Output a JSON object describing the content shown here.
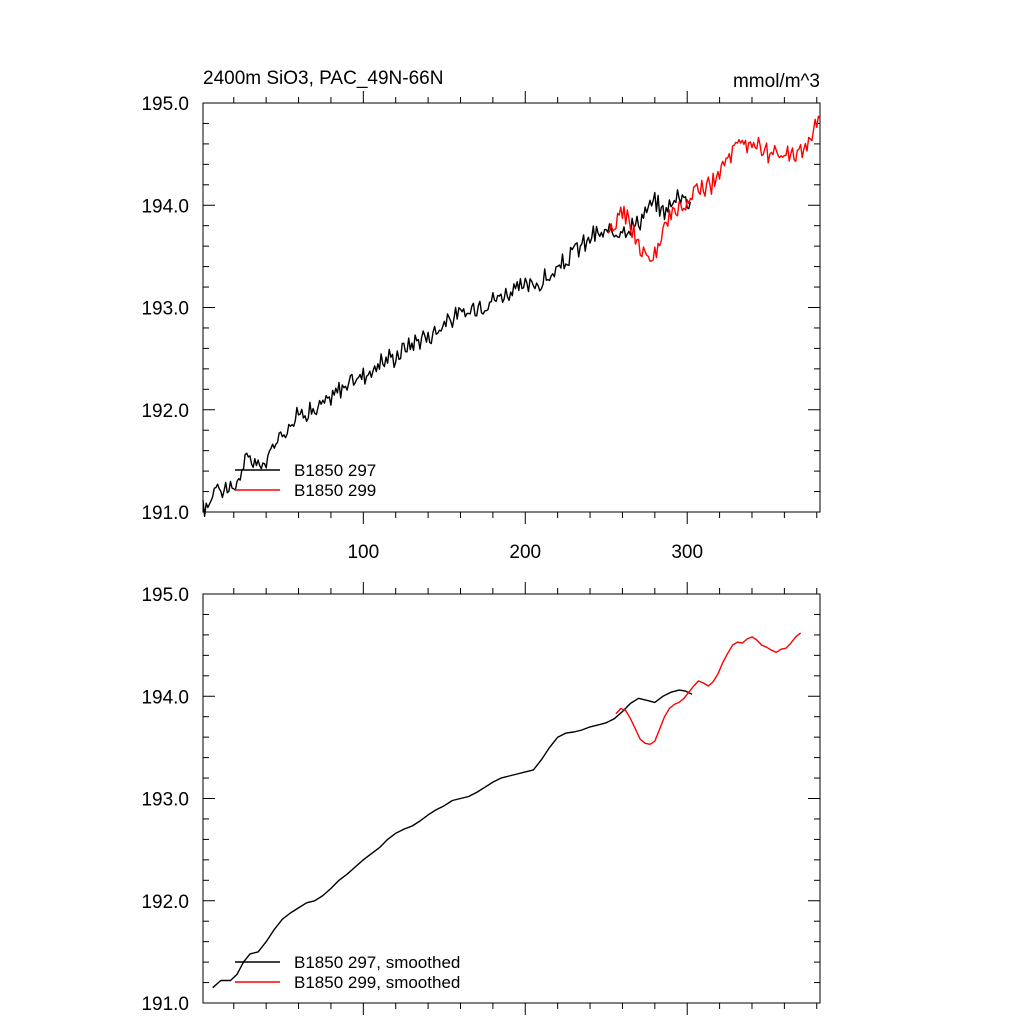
{
  "chart_data": [
    {
      "type": "line",
      "title": "2400m SiO3, PAC_49N-66N",
      "units": "mmol/m^3",
      "xlim": [
        1,
        382
      ],
      "ylim": [
        191.0,
        195.0
      ],
      "x_ticks": [
        100,
        200,
        300
      ],
      "x_tick_labels": [
        "100",
        "200",
        "300"
      ],
      "y_ticks": [
        191.0,
        192.0,
        193.0,
        194.0,
        195.0
      ],
      "y_tick_labels": [
        "191.0",
        "192.0",
        "193.0",
        "194.0",
        "195.0"
      ],
      "legend_position": "bottom-left",
      "series": [
        {
          "name": "B1850 297",
          "color": "#000000",
          "x_start": 1,
          "points": [
            [
              1,
              191.02
            ],
            [
              5,
              191.08
            ],
            [
              8,
              191.25
            ],
            [
              10,
              191.32
            ],
            [
              13,
              191.18
            ],
            [
              16,
              191.28
            ],
            [
              20,
              191.18
            ],
            [
              23,
              191.35
            ],
            [
              27,
              191.48
            ],
            [
              31,
              191.52
            ],
            [
              35,
              191.45
            ],
            [
              40,
              191.48
            ],
            [
              44,
              191.62
            ],
            [
              48,
              191.75
            ],
            [
              52,
              191.82
            ],
            [
              56,
              191.88
            ],
            [
              60,
              191.95
            ],
            [
              65,
              192.0
            ],
            [
              70,
              191.98
            ],
            [
              75,
              192.05
            ],
            [
              80,
              192.1
            ],
            [
              85,
              192.2
            ],
            [
              90,
              192.25
            ],
            [
              95,
              192.3
            ],
            [
              100,
              192.35
            ],
            [
              105,
              192.38
            ],
            [
              110,
              192.45
            ],
            [
              115,
              192.5
            ],
            [
              120,
              192.52
            ],
            [
              125,
              192.6
            ],
            [
              130,
              192.65
            ],
            [
              135,
              192.7
            ],
            [
              140,
              192.72
            ],
            [
              145,
              192.78
            ],
            [
              150,
              192.85
            ],
            [
              155,
              192.9
            ],
            [
              160,
              192.92
            ],
            [
              165,
              192.95
            ],
            [
              170,
              193.02
            ],
            [
              175,
              193.05
            ],
            [
              180,
              193.08
            ],
            [
              185,
              193.12
            ],
            [
              190,
              193.15
            ],
            [
              195,
              193.18
            ],
            [
              200,
              193.2
            ],
            [
              205,
              193.22
            ],
            [
              210,
              193.25
            ],
            [
              215,
              193.3
            ],
            [
              220,
              193.35
            ],
            [
              225,
              193.45
            ],
            [
              230,
              193.55
            ],
            [
              235,
              193.6
            ],
            [
              240,
              193.68
            ],
            [
              245,
              193.72
            ],
            [
              250,
              193.7
            ],
            [
              255,
              193.75
            ],
            [
              260,
              193.8
            ],
            [
              265,
              193.78
            ],
            [
              270,
              193.85
            ],
            [
              275,
              193.95
            ],
            [
              280,
              194.02
            ],
            [
              285,
              193.95
            ],
            [
              290,
              194.0
            ],
            [
              295,
              194.12
            ],
            [
              300,
              194.05
            ],
            [
              302,
              194.08
            ]
          ]
        },
        {
          "name": "B1850 299",
          "color": "#ff0000",
          "x_start": 251,
          "points": [
            [
              251,
              193.65
            ],
            [
              255,
              193.8
            ],
            [
              259,
              193.95
            ],
            [
              263,
              193.9
            ],
            [
              267,
              193.72
            ],
            [
              271,
              193.58
            ],
            [
              275,
              193.5
            ],
            [
              279,
              193.45
            ],
            [
              283,
              193.6
            ],
            [
              287,
              193.8
            ],
            [
              291,
              193.92
            ],
            [
              295,
              193.95
            ],
            [
              299,
              194.0
            ],
            [
              303,
              194.08
            ],
            [
              307,
              194.2
            ],
            [
              311,
              194.15
            ],
            [
              315,
              194.18
            ],
            [
              319,
              194.3
            ],
            [
              323,
              194.4
            ],
            [
              327,
              194.5
            ],
            [
              331,
              194.55
            ],
            [
              335,
              194.58
            ],
            [
              339,
              194.6
            ],
            [
              343,
              194.62
            ],
            [
              347,
              194.55
            ],
            [
              351,
              194.5
            ],
            [
              355,
              194.48
            ],
            [
              359,
              194.45
            ],
            [
              363,
              194.5
            ],
            [
              367,
              194.48
            ],
            [
              371,
              194.55
            ],
            [
              375,
              194.6
            ],
            [
              379,
              194.75
            ],
            [
              382,
              194.9
            ]
          ]
        }
      ]
    },
    {
      "type": "line",
      "xlim": [
        1,
        382
      ],
      "ylim": [
        191.0,
        195.0
      ],
      "x_ticks": [
        100,
        200,
        300
      ],
      "x_tick_labels": [],
      "y_ticks": [
        191.0,
        192.0,
        193.0,
        194.0,
        195.0
      ],
      "y_tick_labels": [
        "191.0",
        "192.0",
        "193.0",
        "194.0",
        "195.0"
      ],
      "legend_position": "bottom-left",
      "series": [
        {
          "name": "B1850 297, smoothed",
          "color": "#000000",
          "points": [
            [
              7,
              191.15
            ],
            [
              12,
              191.22
            ],
            [
              18,
              191.22
            ],
            [
              22,
              191.28
            ],
            [
              26,
              191.4
            ],
            [
              30,
              191.48
            ],
            [
              35,
              191.5
            ],
            [
              40,
              191.6
            ],
            [
              45,
              191.72
            ],
            [
              50,
              191.82
            ],
            [
              55,
              191.88
            ],
            [
              60,
              191.93
            ],
            [
              65,
              191.98
            ],
            [
              70,
              192.0
            ],
            [
              75,
              192.05
            ],
            [
              80,
              192.12
            ],
            [
              85,
              192.2
            ],
            [
              90,
              192.26
            ],
            [
              95,
              192.33
            ],
            [
              100,
              192.4
            ],
            [
              105,
              192.46
            ],
            [
              110,
              192.52
            ],
            [
              115,
              192.6
            ],
            [
              120,
              192.66
            ],
            [
              125,
              192.7
            ],
            [
              130,
              192.73
            ],
            [
              135,
              192.78
            ],
            [
              140,
              192.84
            ],
            [
              145,
              192.89
            ],
            [
              150,
              192.93
            ],
            [
              155,
              192.98
            ],
            [
              160,
              193.0
            ],
            [
              165,
              193.02
            ],
            [
              170,
              193.06
            ],
            [
              175,
              193.11
            ],
            [
              180,
              193.16
            ],
            [
              185,
              193.2
            ],
            [
              190,
              193.22
            ],
            [
              195,
              193.24
            ],
            [
              200,
              193.26
            ],
            [
              205,
              193.28
            ],
            [
              210,
              193.38
            ],
            [
              215,
              193.5
            ],
            [
              220,
              193.6
            ],
            [
              225,
              193.64
            ],
            [
              230,
              193.65
            ],
            [
              235,
              193.67
            ],
            [
              240,
              193.7
            ],
            [
              245,
              193.72
            ],
            [
              250,
              193.74
            ],
            [
              255,
              193.78
            ],
            [
              260,
              193.85
            ],
            [
              265,
              193.93
            ],
            [
              270,
              193.98
            ],
            [
              275,
              193.96
            ],
            [
              280,
              193.94
            ],
            [
              285,
              194.0
            ],
            [
              290,
              194.04
            ],
            [
              295,
              194.06
            ],
            [
              299,
              194.05
            ],
            [
              303,
              194.02
            ]
          ]
        },
        {
          "name": "B1850 299, smoothed",
          "color": "#ff0000",
          "points": [
            [
              256,
              193.83
            ],
            [
              259,
              193.88
            ],
            [
              262,
              193.86
            ],
            [
              265,
              193.78
            ],
            [
              268,
              193.68
            ],
            [
              271,
              193.58
            ],
            [
              274,
              193.54
            ],
            [
              277,
              193.53
            ],
            [
              280,
              193.56
            ],
            [
              283,
              193.68
            ],
            [
              286,
              193.8
            ],
            [
              289,
              193.88
            ],
            [
              292,
              193.92
            ],
            [
              295,
              193.94
            ],
            [
              298,
              193.98
            ],
            [
              301,
              194.04
            ],
            [
              304,
              194.1
            ],
            [
              307,
              194.15
            ],
            [
              310,
              194.13
            ],
            [
              313,
              194.1
            ],
            [
              316,
              194.14
            ],
            [
              319,
              194.22
            ],
            [
              322,
              194.33
            ],
            [
              325,
              194.42
            ],
            [
              328,
              194.5
            ],
            [
              331,
              194.53
            ],
            [
              334,
              194.52
            ],
            [
              337,
              194.56
            ],
            [
              340,
              194.58
            ],
            [
              343,
              194.55
            ],
            [
              346,
              194.5
            ],
            [
              349,
              194.48
            ],
            [
              352,
              194.45
            ],
            [
              355,
              194.43
            ],
            [
              358,
              194.46
            ],
            [
              361,
              194.47
            ],
            [
              364,
              194.52
            ],
            [
              367,
              194.58
            ],
            [
              370,
              194.62
            ]
          ]
        }
      ]
    }
  ]
}
